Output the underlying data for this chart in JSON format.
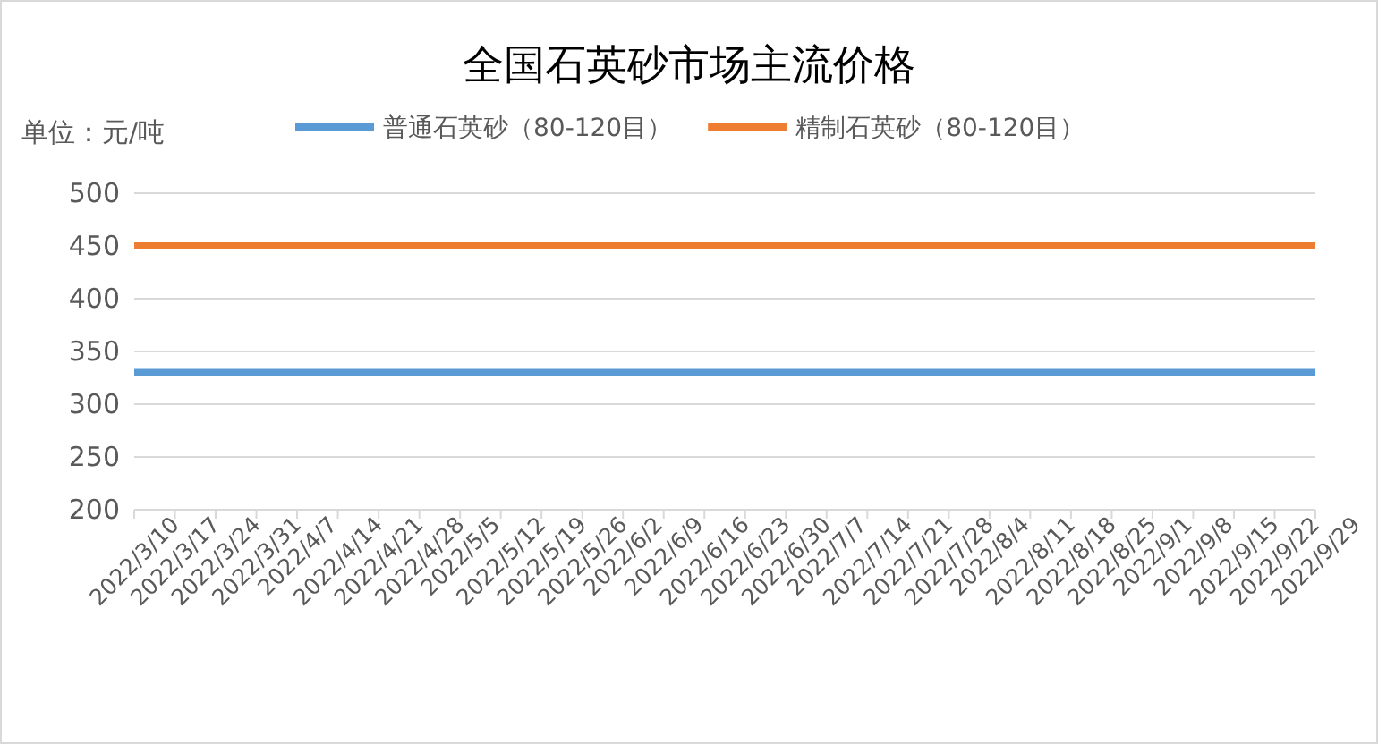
{
  "chart_data": {
    "type": "line",
    "title": "全国石英砂市场主流价格",
    "annotations": [
      "单位：元/吨"
    ],
    "categories": [
      "2022/3/10",
      "2022/3/17",
      "2022/3/24",
      "2022/3/31",
      "2022/4/7",
      "2022/4/14",
      "2022/4/21",
      "2022/4/28",
      "2022/5/5",
      "2022/5/12",
      "2022/5/19",
      "2022/5/26",
      "2022/6/2",
      "2022/6/9",
      "2022/6/16",
      "2022/6/23",
      "2022/6/30",
      "2022/7/7",
      "2022/7/14",
      "2022/7/21",
      "2022/7/28",
      "2022/8/4",
      "2022/8/11",
      "2022/8/18",
      "2022/8/25",
      "2022/9/1",
      "2022/9/8",
      "2022/9/15",
      "2022/9/22",
      "2022/9/29"
    ],
    "series": [
      {
        "name": "普通石英砂（80-120目）",
        "color": "#5b9bd5",
        "values": [
          330,
          330,
          330,
          330,
          330,
          330,
          330,
          330,
          330,
          330,
          330,
          330,
          330,
          330,
          330,
          330,
          330,
          330,
          330,
          330,
          330,
          330,
          330,
          330,
          330,
          330,
          330,
          330,
          330,
          330
        ]
      },
      {
        "name": "精制石英砂（80-120目）",
        "color": "#ed7d31",
        "values": [
          450,
          450,
          450,
          450,
          450,
          450,
          450,
          450,
          450,
          450,
          450,
          450,
          450,
          450,
          450,
          450,
          450,
          450,
          450,
          450,
          450,
          450,
          450,
          450,
          450,
          450,
          450,
          450,
          450,
          450
        ]
      }
    ],
    "ylim": [
      200,
      500
    ],
    "yticks": [
      200,
      250,
      300,
      350,
      400,
      450,
      500
    ],
    "grid": "y",
    "legend": "top",
    "marker": "none",
    "line_style": "solid"
  }
}
